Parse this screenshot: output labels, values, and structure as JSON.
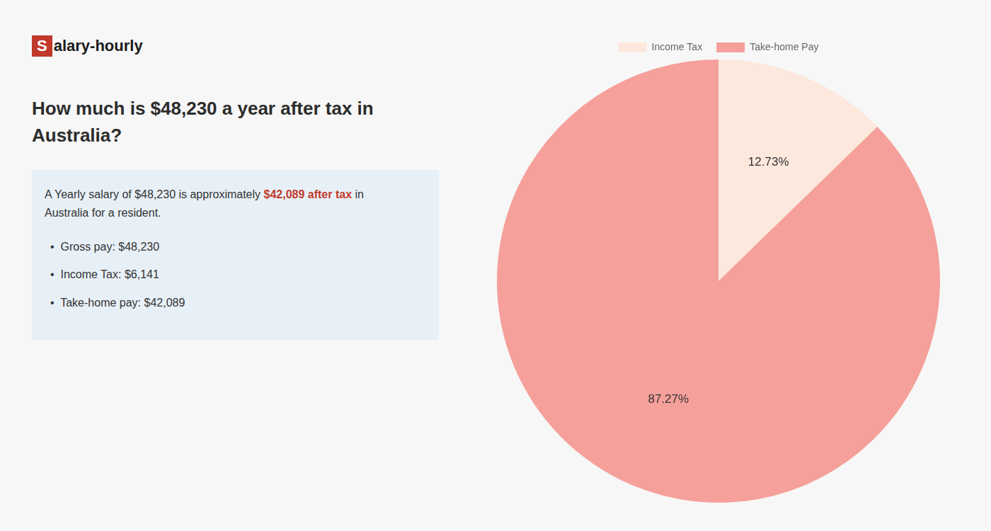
{
  "chart_data": {
    "type": "pie",
    "title": [
      "How much is $48,230 a year after tax in",
      "Australia?"
    ],
    "annotations": [
      [
        {
          "text": "S",
          "color": "#c0392b"
        },
        {
          "text": "alary-hourly"
        }
      ],
      [
        {
          "text": "A Yearly salary of $48,230 is approximately "
        },
        {
          "text": "$42,089 after tax",
          "color": "#c0392b"
        },
        {
          "text": " in"
        }
      ],
      [
        {
          "text": "Australia for a resident."
        }
      ],
      [
        {
          "text": "•  Gross pay: $48,230"
        }
      ],
      [
        {
          "text": "•  Income Tax: $6,141"
        }
      ],
      [
        {
          "text": "•  Take-home pay: $42,089"
        }
      ]
    ],
    "categories": [
      "Income Tax",
      "Take-home Pay"
    ],
    "values": [
      12.73,
      87.27
    ],
    "value_labels": [
      "12.73%",
      "87.27%"
    ],
    "colors": [
      "#fce8dc",
      "#f5a09a"
    ],
    "data_labels": true,
    "legend": "top"
  }
}
